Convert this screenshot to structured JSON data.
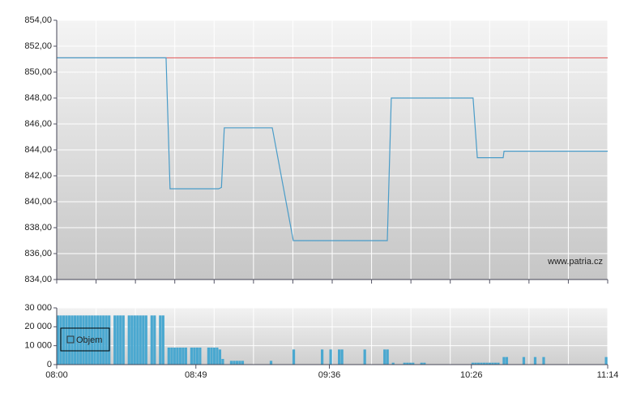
{
  "chart_data": [
    {
      "type": "line",
      "x": [
        0,
        38.5,
        39.9,
        57,
        58,
        59,
        75.9,
        83.3,
        116.4,
        117.8,
        146.6,
        148.1,
        157.2,
        157.5,
        194
      ],
      "xlim": [
        0,
        194
      ],
      "series": [
        {
          "color": "#4a9cc8",
          "values": [
            851.1,
            851.1,
            841.0,
            841.0,
            841.1,
            845.7,
            845.7,
            837.0,
            837.0,
            848.0,
            848.0,
            843.4,
            843.4,
            843.9,
            843.9
          ]
        }
      ],
      "reference_line": {
        "value": 851.1,
        "color": "#e05555"
      },
      "ylim": [
        834,
        854
      ],
      "yticks": [
        {
          "value": 834,
          "label": "834,00"
        },
        {
          "value": 836,
          "label": "836,00"
        },
        {
          "value": 838,
          "label": "838,00"
        },
        {
          "value": 840,
          "label": "840,00"
        },
        {
          "value": 842,
          "label": "842,00"
        },
        {
          "value": 844,
          "label": "844,00"
        },
        {
          "value": 846,
          "label": "846,00"
        },
        {
          "value": 848,
          "label": "848,00"
        },
        {
          "value": 850,
          "label": "850,00"
        },
        {
          "value": 852,
          "label": "852,00"
        },
        {
          "value": 854,
          "label": "854,00"
        }
      ],
      "grid": true,
      "annotation": "www.patria.cz"
    },
    {
      "type": "bar",
      "x": [
        0,
        1,
        2,
        3,
        4,
        5,
        6,
        7,
        8,
        9,
        10,
        11,
        12,
        13,
        14,
        15,
        16,
        17,
        18,
        20,
        21,
        22,
        23,
        25,
        26,
        27,
        28,
        29,
        30,
        31,
        33,
        34,
        36,
        37,
        39,
        40,
        41,
        42,
        43,
        44,
        45,
        47,
        48,
        49,
        50,
        53,
        54,
        55,
        56,
        57,
        58,
        61,
        62,
        63,
        64,
        65,
        75,
        83,
        93,
        96,
        99,
        100,
        108,
        115,
        116,
        118,
        122,
        123,
        124,
        125,
        128,
        129,
        146,
        147,
        148,
        149,
        150,
        151,
        152,
        153,
        154,
        155,
        157,
        158,
        164,
        168,
        171,
        193
      ],
      "xlim": [
        0,
        194
      ],
      "xticks": [
        {
          "value": 0,
          "label": "08:00"
        },
        {
          "value": 49,
          "label": "08:49"
        },
        {
          "value": 96,
          "label": "09:36"
        },
        {
          "value": 146,
          "label": "10:26"
        },
        {
          "value": 194,
          "label": "11:14"
        }
      ],
      "series": [
        {
          "name": "Objem",
          "color": "#4aa8d0",
          "values": [
            26000,
            26000,
            26000,
            26000,
            26000,
            26000,
            26000,
            26000,
            26000,
            26000,
            26000,
            26000,
            26000,
            26000,
            26000,
            26000,
            26000,
            26000,
            26000,
            26000,
            26000,
            26000,
            26000,
            26000,
            26000,
            26000,
            26000,
            26000,
            26000,
            26000,
            26000,
            26000,
            26000,
            26000,
            9000,
            9000,
            9000,
            9000,
            9000,
            9000,
            9000,
            9000,
            9000,
            9000,
            9000,
            9000,
            9000,
            9000,
            9000,
            8000,
            3000,
            2000,
            2000,
            2000,
            2000,
            2000,
            2000,
            8000,
            8000,
            8000,
            8000,
            8000,
            8000,
            8000,
            8000,
            1000,
            1000,
            1000,
            1000,
            1000,
            1000,
            1000,
            1000,
            1000,
            1000,
            1000,
            1000,
            1000,
            1000,
            1000,
            1000,
            1000,
            4000,
            4000,
            4000,
            4000,
            4000,
            4000
          ]
        }
      ],
      "ylim": [
        0,
        30000
      ],
      "yticks": [
        0,
        {
          "value": 10000,
          "label": "10 000"
        },
        {
          "value": 20000,
          "label": "20 000"
        },
        {
          "value": 30000,
          "label": "30 000"
        }
      ],
      "grid": true
    }
  ]
}
